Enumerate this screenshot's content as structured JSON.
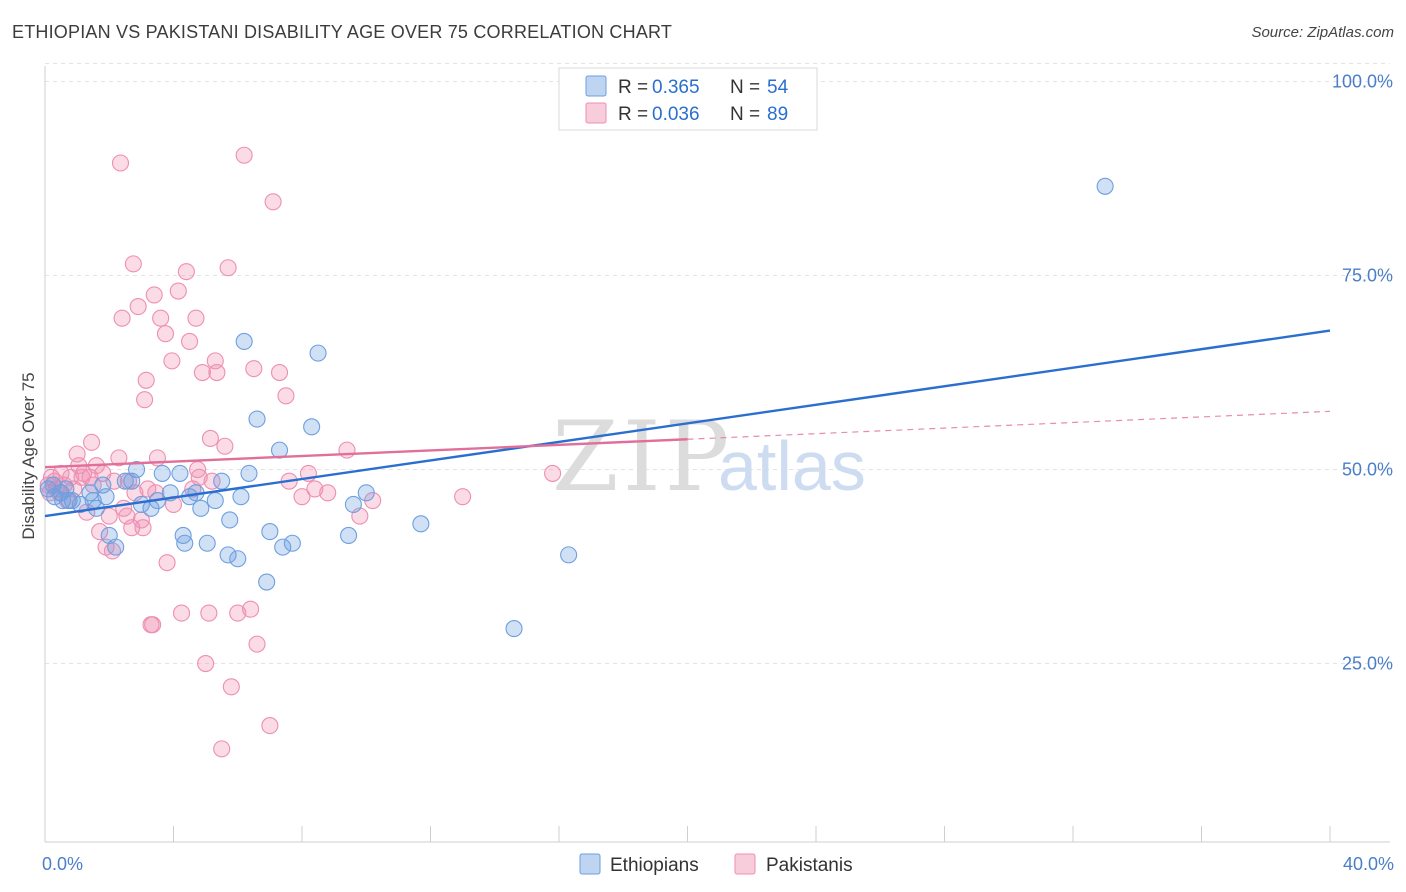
{
  "title": "ETHIOPIAN VS PAKISTANI DISABILITY AGE OVER 75 CORRELATION CHART",
  "source": "Source: ZipAtlas.com",
  "watermark": {
    "part1": "ZIP",
    "part2": "atlas"
  },
  "legend_top": [
    {
      "r_label": "R =",
      "r_value": "0.365",
      "n_label": "N =",
      "n_value": "54",
      "color": "#6e9fe0"
    },
    {
      "r_label": "R =",
      "r_value": "0.036",
      "n_label": "N =",
      "n_value": "89",
      "color": "#ee8fb0"
    }
  ],
  "legend_bottom": [
    "Ethiopians",
    "Pakistanis"
  ],
  "chart_data": {
    "type": "scatter",
    "title": "ETHIOPIAN VS PAKISTANI DISABILITY AGE OVER 75 CORRELATION CHART",
    "xlabel": "",
    "ylabel": "Disability Age Over 75",
    "xlim": [
      0,
      40
    ],
    "ylim": [
      2,
      102
    ],
    "x_tick_labels": [
      "0.0%",
      "40.0%"
    ],
    "y_ticks": [
      25,
      50,
      75,
      100
    ],
    "y_tick_labels": [
      "25.0%",
      "50.0%",
      "75.0%",
      "100.0%"
    ],
    "grid": true,
    "legend_position": "top-center",
    "series": [
      {
        "name": "Ethiopians",
        "color": "#6e9fe0",
        "line_color": "#2a6fd0",
        "trend": {
          "x": [
            0,
            40
          ],
          "y": [
            44.0,
            67.9
          ]
        },
        "x": [
          0.1,
          0.25,
          0.3,
          0.5,
          0.55,
          0.65,
          0.75,
          0.85,
          1.1,
          1.4,
          1.5,
          1.6,
          1.8,
          1.9,
          2.0,
          2.2,
          2.5,
          2.7,
          2.85,
          3.0,
          3.3,
          3.5,
          3.65,
          3.9,
          4.2,
          4.3,
          4.35,
          4.5,
          4.7,
          4.85,
          5.05,
          5.3,
          5.5,
          5.7,
          5.75,
          6.0,
          6.1,
          6.2,
          6.35,
          6.6,
          6.9,
          7.0,
          7.3,
          7.4,
          7.7,
          8.3,
          8.5,
          9.45,
          9.6,
          10.0,
          11.7,
          14.6,
          16.3,
          33.0
        ],
        "y": [
          47.5,
          48.0,
          46.5,
          47.0,
          46.0,
          47.5,
          46.0,
          46.0,
          45.5,
          47.0,
          46.0,
          45.0,
          48.0,
          46.5,
          41.5,
          40.0,
          48.5,
          48.5,
          50.0,
          45.5,
          45.0,
          46.0,
          49.5,
          47.0,
          49.5,
          41.5,
          40.5,
          46.5,
          47.0,
          45.0,
          40.5,
          46.0,
          48.5,
          39.0,
          43.5,
          38.5,
          46.5,
          66.5,
          49.5,
          56.5,
          35.5,
          42.0,
          52.5,
          40.0,
          40.5,
          55.5,
          65.0,
          41.5,
          45.5,
          47.0,
          43.0,
          29.5,
          39.0,
          86.5
        ]
      },
      {
        "name": "Pakistanis",
        "color": "#ee8fb0",
        "line_color": "#e0709a",
        "trend": {
          "x": [
            0,
            20
          ],
          "y": [
            50.3,
            53.9
          ]
        },
        "trend_dashed": {
          "x": [
            20,
            40
          ],
          "y": [
            53.9,
            57.5
          ]
        },
        "x": [
          0.1,
          0.15,
          0.2,
          0.3,
          0.35,
          0.45,
          0.5,
          0.6,
          0.7,
          0.8,
          0.9,
          1.0,
          1.05,
          1.15,
          1.2,
          1.3,
          1.4,
          1.45,
          1.5,
          1.6,
          1.7,
          1.8,
          1.9,
          2.0,
          2.1,
          2.15,
          2.3,
          2.35,
          2.4,
          2.45,
          2.55,
          2.6,
          2.7,
          2.75,
          2.8,
          2.9,
          3.0,
          3.05,
          3.1,
          3.15,
          3.2,
          3.3,
          3.35,
          3.4,
          3.45,
          3.5,
          3.6,
          3.75,
          3.8,
          3.95,
          4.0,
          4.15,
          4.25,
          4.4,
          4.5,
          4.6,
          4.7,
          4.75,
          4.8,
          4.9,
          5.0,
          5.1,
          5.15,
          5.2,
          5.3,
          5.35,
          5.5,
          5.6,
          5.7,
          5.8,
          6.0,
          6.2,
          6.4,
          6.5,
          6.6,
          7.0,
          7.1,
          7.3,
          7.5,
          7.6,
          8.0,
          8.2,
          8.4,
          8.8,
          9.4,
          9.8,
          10.2,
          13.0,
          15.8
        ],
        "y": [
          48.0,
          47.0,
          49.0,
          48.5,
          47.5,
          47.0,
          49.5,
          48.0,
          46.0,
          49.0,
          47.5,
          52.0,
          50.5,
          49.0,
          49.5,
          44.5,
          49.0,
          53.5,
          48.0,
          50.5,
          42.0,
          49.5,
          40.0,
          44.0,
          39.5,
          48.5,
          51.5,
          89.5,
          69.5,
          45.0,
          44.0,
          48.5,
          42.5,
          76.5,
          47.0,
          71.0,
          43.5,
          42.5,
          59.0,
          61.5,
          47.5,
          30.0,
          30.0,
          72.5,
          47.0,
          51.5,
          69.5,
          67.5,
          38.0,
          64.0,
          45.5,
          73.0,
          31.5,
          75.5,
          66.5,
          47.5,
          69.5,
          50.0,
          49.0,
          62.5,
          25.0,
          31.5,
          54.0,
          48.5,
          64.0,
          62.5,
          14.0,
          53.0,
          76.0,
          22.0,
          31.5,
          90.5,
          32.0,
          63.0,
          27.5,
          17.0,
          84.5,
          62.5,
          59.5,
          48.5,
          46.5,
          49.5,
          47.5,
          47.0,
          52.5,
          44.0,
          46.0,
          46.5,
          49.5
        ]
      }
    ]
  }
}
